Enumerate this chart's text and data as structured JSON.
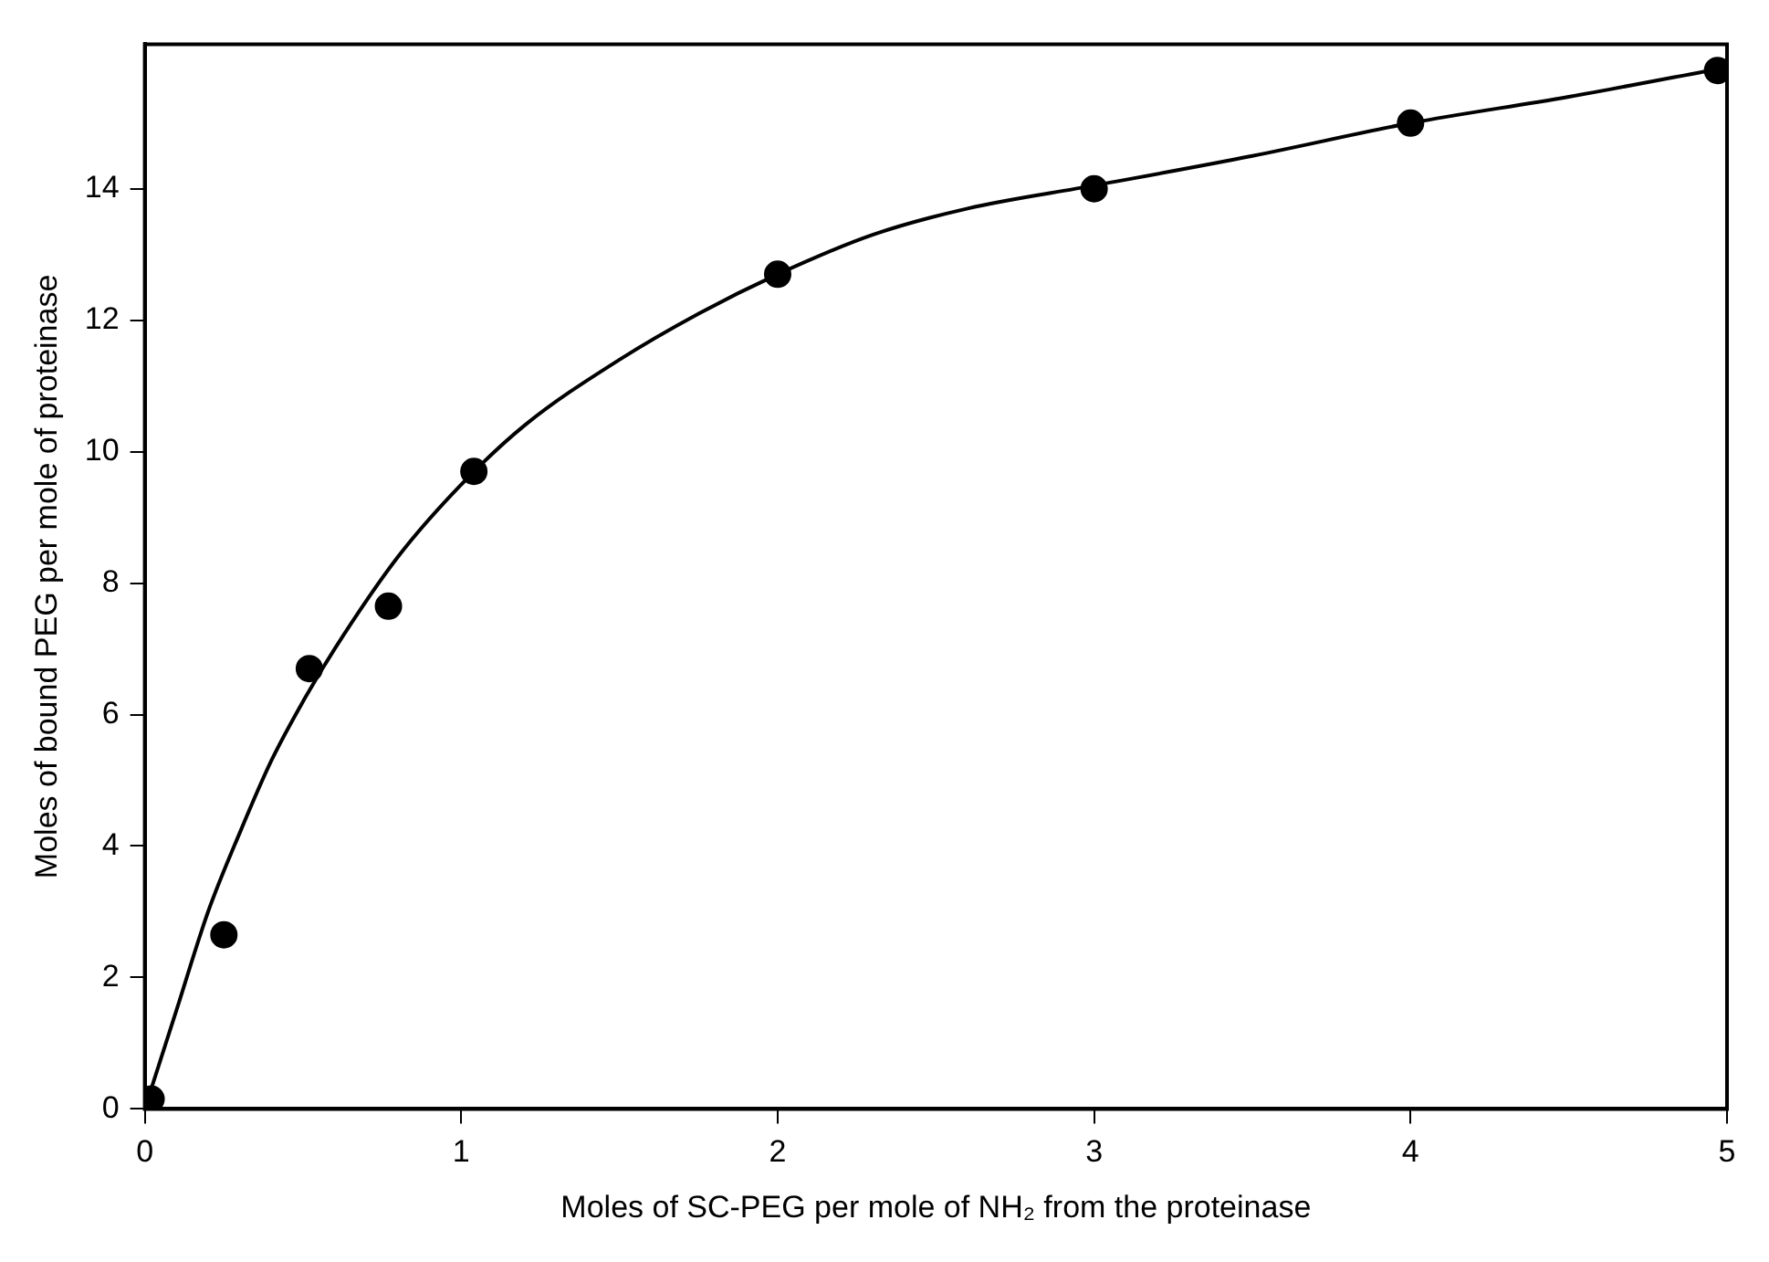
{
  "chart_data": {
    "type": "scatter",
    "xlabel": "Moles of SC-PEG per mole of NH₂ from the proteinase",
    "ylabel": "Moles of bound PEG per mole of proteinase",
    "xlim": [
      0,
      5
    ],
    "ylim": [
      0,
      16.2
    ],
    "xticks": [
      0,
      1,
      2,
      3,
      4,
      5
    ],
    "yticks": [
      0,
      2,
      4,
      6,
      8,
      10,
      12,
      14
    ],
    "grid": false,
    "legend": false,
    "marker": "circle",
    "series": [
      {
        "color": "#000000",
        "x": [
          0.02,
          0.25,
          0.52,
          0.77,
          1.04,
          2.0,
          3.0,
          4.0,
          4.97
        ],
        "values": [
          0.15,
          2.65,
          6.7,
          7.65,
          9.7,
          12.7,
          14.0,
          15.0,
          15.8
        ]
      },
      {
        "type": "line",
        "color": "#000000",
        "marker": "none",
        "line_style": "solid",
        "x": [
          0,
          0.1,
          0.2,
          0.3,
          0.4,
          0.5,
          0.6,
          0.8,
          1.0,
          1.2,
          1.5,
          1.75,
          2.0,
          2.3,
          2.6,
          3.0,
          3.5,
          4.0,
          4.5,
          5.0
        ],
        "values": [
          0,
          1.5,
          3.0,
          4.2,
          5.3,
          6.2,
          7.0,
          8.4,
          9.5,
          10.4,
          11.4,
          12.1,
          12.7,
          13.3,
          13.7,
          14.05,
          14.5,
          15.0,
          15.4,
          15.85
        ]
      }
    ]
  }
}
